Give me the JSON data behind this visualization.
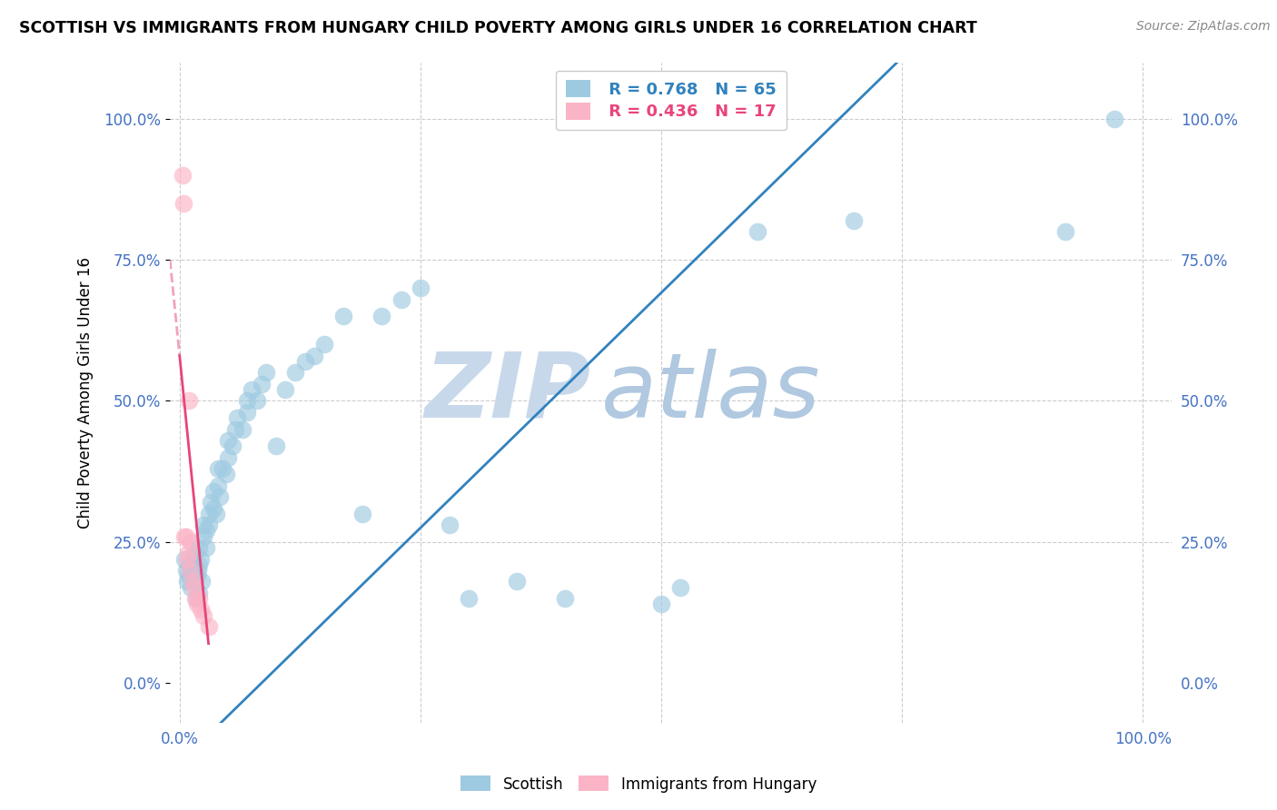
{
  "title": "SCOTTISH VS IMMIGRANTS FROM HUNGARY CHILD POVERTY AMONG GIRLS UNDER 16 CORRELATION CHART",
  "source": "Source: ZipAtlas.com",
  "ylabel": "Child Poverty Among Girls Under 16",
  "blue_R": 0.768,
  "blue_N": 65,
  "pink_R": 0.436,
  "pink_N": 17,
  "blue_color": "#9ecae1",
  "pink_color": "#fbb4c6",
  "blue_line_color": "#3182bd",
  "pink_line_color": "#e8457a",
  "axis_label_color": "#4472C4",
  "watermark_zip_color": "#d0dff0",
  "watermark_atlas_color": "#b8d0e8",
  "legend_label_blue": "Scottish",
  "legend_label_pink": "Immigrants from Hungary",
  "blue_scatter_x": [
    0.005,
    0.007,
    0.008,
    0.01,
    0.01,
    0.012,
    0.013,
    0.015,
    0.015,
    0.017,
    0.018,
    0.019,
    0.02,
    0.02,
    0.02,
    0.022,
    0.023,
    0.025,
    0.025,
    0.028,
    0.028,
    0.03,
    0.03,
    0.032,
    0.035,
    0.035,
    0.038,
    0.04,
    0.04,
    0.042,
    0.045,
    0.048,
    0.05,
    0.05,
    0.055,
    0.058,
    0.06,
    0.065,
    0.07,
    0.07,
    0.075,
    0.08,
    0.085,
    0.09,
    0.1,
    0.11,
    0.12,
    0.13,
    0.14,
    0.15,
    0.17,
    0.19,
    0.21,
    0.23,
    0.25,
    0.28,
    0.3,
    0.35,
    0.4,
    0.5,
    0.52,
    0.6,
    0.7,
    0.92,
    0.97
  ],
  "blue_scatter_y": [
    0.22,
    0.2,
    0.18,
    0.19,
    0.21,
    0.17,
    0.2,
    0.18,
    0.23,
    0.15,
    0.19,
    0.2,
    0.16,
    0.21,
    0.24,
    0.22,
    0.18,
    0.26,
    0.28,
    0.24,
    0.27,
    0.3,
    0.28,
    0.32,
    0.31,
    0.34,
    0.3,
    0.35,
    0.38,
    0.33,
    0.38,
    0.37,
    0.4,
    0.43,
    0.42,
    0.45,
    0.47,
    0.45,
    0.5,
    0.48,
    0.52,
    0.5,
    0.53,
    0.55,
    0.42,
    0.52,
    0.55,
    0.57,
    0.58,
    0.6,
    0.65,
    0.3,
    0.65,
    0.68,
    0.7,
    0.28,
    0.15,
    0.18,
    0.15,
    0.14,
    0.17,
    0.8,
    0.82,
    0.8,
    1.0
  ],
  "pink_scatter_x": [
    0.003,
    0.004,
    0.005,
    0.007,
    0.008,
    0.009,
    0.01,
    0.011,
    0.012,
    0.013,
    0.015,
    0.016,
    0.018,
    0.02,
    0.022,
    0.025,
    0.03
  ],
  "pink_scatter_y": [
    0.9,
    0.85,
    0.26,
    0.26,
    0.22,
    0.23,
    0.5,
    0.2,
    0.25,
    0.18,
    0.17,
    0.15,
    0.14,
    0.15,
    0.13,
    0.12,
    0.1
  ],
  "blue_line_x0": 0.085,
  "blue_line_y0": 0.0,
  "blue_line_x1": 0.685,
  "blue_line_y1": 1.0,
  "pink_line_solid_x0": 0.0,
  "pink_line_solid_y0": 0.58,
  "pink_line_solid_x1": 0.03,
  "pink_line_solid_y1": 0.07,
  "pink_line_dash_x0": 0.03,
  "pink_line_dash_y0": 0.07,
  "pink_line_dash_x1": -0.01,
  "pink_line_dash_y1": 1.08,
  "xlim": [
    -0.01,
    1.03
  ],
  "ylim": [
    -0.07,
    1.1
  ],
  "yticks": [
    0.0,
    0.25,
    0.5,
    0.75,
    1.0
  ],
  "ytick_labels": [
    "0.0%",
    "25.0%",
    "50.0%",
    "75.0%",
    "100.0%"
  ],
  "xticks": [
    0.0,
    1.0
  ],
  "xtick_labels": [
    "0.0%",
    "100.0%"
  ],
  "figsize": [
    14.06,
    8.92
  ],
  "dpi": 100
}
